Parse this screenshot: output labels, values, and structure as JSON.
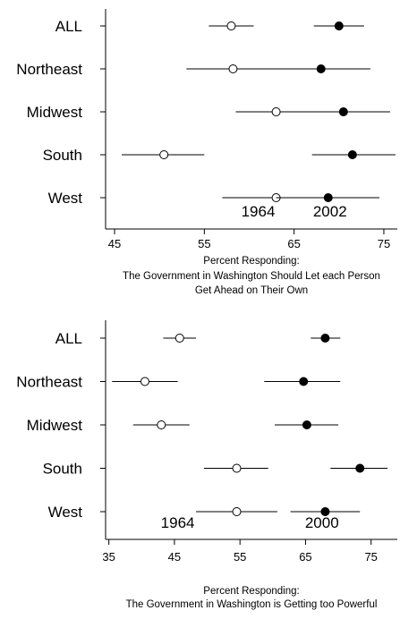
{
  "chart_data": [
    {
      "type": "scatter",
      "subtype": "dot-plot-with-error-bars",
      "categories": [
        "ALL",
        "Northeast",
        "Midwest",
        "South",
        "West"
      ],
      "xlim": [
        44,
        76.5
      ],
      "xticks": [
        45,
        55,
        65,
        75
      ],
      "xlabel": [
        "Percent Responding:",
        "The Government in Washington Should Let each Person",
        "Get Ahead on Their Own"
      ],
      "grid": false,
      "series": [
        {
          "name": "1964",
          "marker": "open-circle",
          "values": [
            58,
            58.2,
            63,
            50.5,
            63
          ],
          "lower": [
            55.5,
            53,
            58.5,
            45.8,
            57
          ],
          "upper": [
            60.5,
            63.8,
            67.2,
            55,
            69
          ]
        },
        {
          "name": "2002",
          "marker": "filled-circle",
          "values": [
            70,
            68,
            70.5,
            71.5,
            68.8
          ],
          "lower": [
            67.2,
            62.5,
            65.5,
            67,
            63
          ],
          "upper": [
            72.8,
            73.5,
            75.7,
            76.3,
            74.5
          ]
        }
      ],
      "annotations": [
        {
          "text": "1964",
          "x": 61,
          "row": "West"
        },
        {
          "text": "2002",
          "x": 69,
          "row": "West"
        }
      ]
    },
    {
      "type": "scatter",
      "subtype": "dot-plot-with-error-bars",
      "categories": [
        "ALL",
        "Northeast",
        "Midwest",
        "South",
        "West"
      ],
      "xlim": [
        34.5,
        79
      ],
      "xticks": [
        35,
        45,
        55,
        65,
        75
      ],
      "xlabel": [
        "Percent Responding:",
        "The Government in Washington is Getting too Powerful"
      ],
      "grid": false,
      "series": [
        {
          "name": "1964",
          "marker": "open-circle",
          "values": [
            45.8,
            40.5,
            43,
            54.5,
            54.5
          ],
          "lower": [
            43.3,
            35.5,
            38.7,
            49.5,
            48.3
          ],
          "upper": [
            48.3,
            45.5,
            47.3,
            59.3,
            60.7
          ]
        },
        {
          "name": "2000",
          "marker": "filled-circle",
          "values": [
            68,
            64.7,
            65.2,
            73.3,
            68
          ],
          "lower": [
            65.8,
            58.7,
            60.3,
            68.8,
            62.7
          ],
          "upper": [
            70.3,
            70.3,
            70,
            77.5,
            73.3
          ]
        }
      ],
      "annotations": [
        {
          "text": "1964",
          "x": 45.5,
          "row": "West"
        },
        {
          "text": "2000",
          "x": 67.5,
          "row": "West"
        }
      ]
    }
  ]
}
